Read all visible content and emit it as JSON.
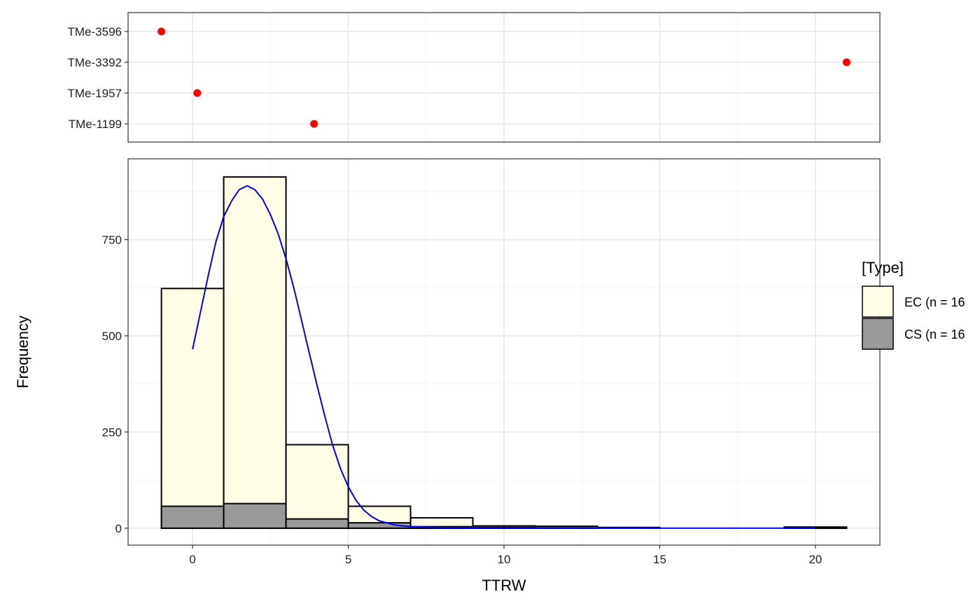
{
  "chart_data": [
    {
      "type": "scatter",
      "panel": "top",
      "categories": [
        "TMe-3596",
        "TMe-3392",
        "TMe-1957",
        "TMe-1199"
      ],
      "points": [
        {
          "label": "TMe-3596",
          "x": -1.0
        },
        {
          "label": "TMe-3392",
          "x": 21.0
        },
        {
          "label": "TMe-1957",
          "x": 0.15
        },
        {
          "label": "TMe-1199",
          "x": 3.9
        }
      ],
      "xlim": [
        -2.07,
        22.07
      ],
      "grid": true,
      "point_color": "#ff0000"
    },
    {
      "type": "bar",
      "panel": "bottom",
      "subtype": "histogram",
      "xlabel": "TTRW",
      "ylabel": "Frequency",
      "xlim": [
        -2.07,
        22.07
      ],
      "ylim": [
        -44,
        960
      ],
      "x_ticks": [
        0,
        5,
        10,
        15,
        20
      ],
      "y_ticks": [
        0,
        250,
        500,
        750
      ],
      "grid": true,
      "legend_placement": "right",
      "bins": [
        [
          -1,
          1
        ],
        [
          1,
          3
        ],
        [
          3,
          5
        ],
        [
          5,
          7
        ],
        [
          7,
          9
        ],
        [
          9,
          11
        ],
        [
          11,
          13
        ],
        [
          13,
          15
        ],
        [
          15,
          17
        ],
        [
          17,
          19
        ],
        [
          19,
          21
        ]
      ],
      "series": [
        {
          "name": "EC (n = 16",
          "color": "#fffde6",
          "values": [
            623,
            913,
            217,
            57,
            27,
            6,
            5,
            2,
            0,
            0,
            3
          ]
        },
        {
          "name": "CS (n = 16",
          "color": "#999999",
          "values": [
            57,
            64,
            24,
            14,
            4,
            2,
            1,
            0,
            0,
            0,
            1
          ]
        }
      ],
      "density_curve": {
        "color": "#0000ee",
        "x": [
          0,
          0.25,
          0.5,
          0.75,
          1,
          1.25,
          1.5,
          1.75,
          2,
          2.25,
          2.5,
          2.75,
          3,
          3.25,
          3.5,
          3.75,
          4,
          4.25,
          4.5,
          4.75,
          5,
          5.25,
          5.5,
          5.75,
          6,
          6.5,
          7,
          8,
          10,
          15,
          20
        ],
        "y": [
          465,
          560,
          655,
          745,
          810,
          850,
          880,
          890,
          880,
          855,
          815,
          765,
          700,
          625,
          540,
          455,
          370,
          290,
          215,
          155,
          108,
          72,
          47,
          30,
          19,
          8,
          4,
          1.5,
          0.5,
          0.2,
          0.1
        ]
      },
      "legend": {
        "title": "[Type]"
      }
    }
  ]
}
